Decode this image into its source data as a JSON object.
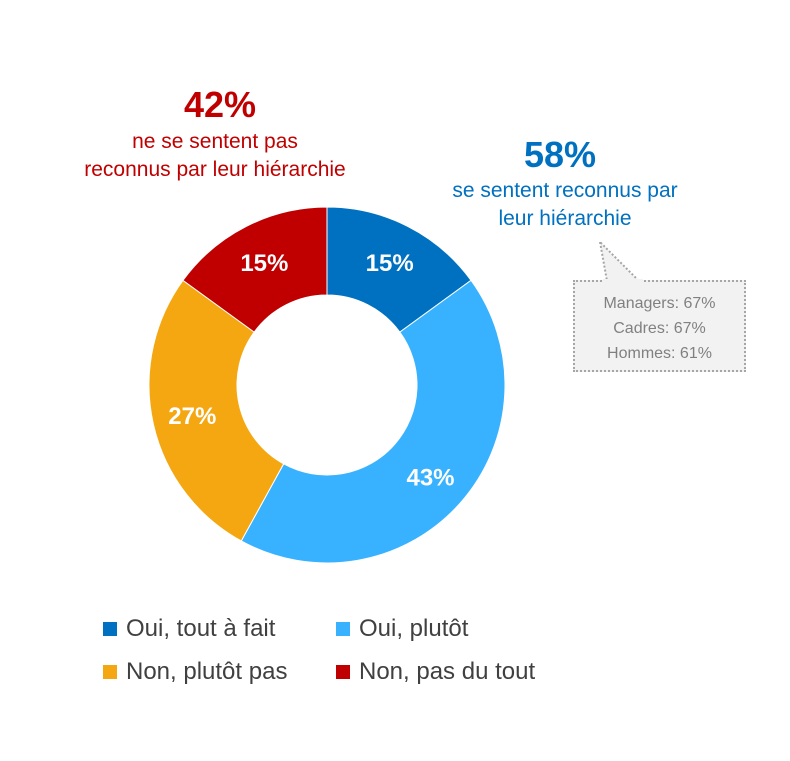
{
  "negative": {
    "percent": "42%",
    "text_line1": "ne se sentent pas",
    "text_line2": "reconnus par leur hiérarchie",
    "color": "#c00000"
  },
  "positive": {
    "percent": "58%",
    "text_line1": "se sentent reconnus par",
    "text_line2": "leur hiérarchie",
    "color": "#0070c0"
  },
  "callout": {
    "lines": [
      "Managers: 67%",
      "Cadres: 67%",
      "Hommes: 61%"
    ]
  },
  "chart_data": {
    "type": "pie",
    "donut": true,
    "categories": [
      "Oui, tout à fait",
      "Oui, plutôt",
      "Non, plutôt pas",
      "Non, pas du tout"
    ],
    "values": [
      15,
      43,
      27,
      15
    ],
    "data_labels": [
      "15%",
      "43%",
      "27%",
      "15%"
    ],
    "colors": [
      "#0070c0",
      "#38b2ff",
      "#f5a711",
      "#c00000"
    ],
    "legend_position": "bottom",
    "title": ""
  }
}
